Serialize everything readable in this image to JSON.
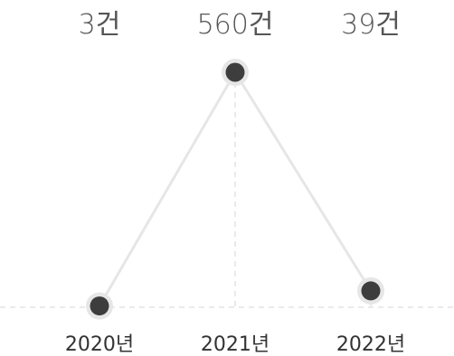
{
  "chart_data": {
    "type": "line",
    "categories": [
      "2020년",
      "2021년",
      "2022년"
    ],
    "values": [
      3,
      560,
      39
    ],
    "data_labels": [
      "3건",
      "560건",
      "39건"
    ],
    "title": "",
    "xlabel": "",
    "ylabel": "",
    "ylim": [
      0,
      560
    ],
    "grid": false,
    "legend": "none",
    "colors": {
      "line": "#e6e6e6",
      "point": "#3d3d3d",
      "point_halo": "#e6e6e6",
      "guide": "#e3e3e3",
      "value_text": "#555555",
      "category_text": "#333333"
    }
  }
}
